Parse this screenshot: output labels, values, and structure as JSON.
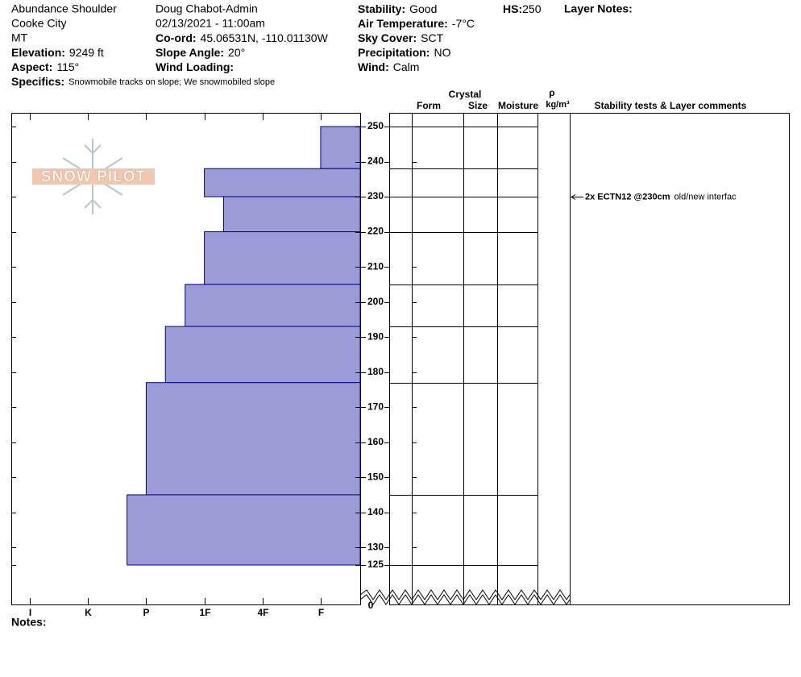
{
  "header": {
    "location": [
      "Abundance Shoulder",
      "Cooke City",
      "MT"
    ],
    "observer": "Doug Chabot-Admin",
    "datetime": "02/13/2021 - 11:00am",
    "fields_left": [
      {
        "label": "Elevation:",
        "value": "9249 ft"
      },
      {
        "label": "Aspect:",
        "value": "115°"
      }
    ],
    "fields_mid": [
      {
        "label": "Co-ord:",
        "value": "45.06531N, -110.01130W"
      },
      {
        "label": "Slope Angle:",
        "value": "20°"
      },
      {
        "label": "Wind Loading:",
        "value": ""
      }
    ],
    "fields_right": [
      {
        "label": "Stability:",
        "value": "Good"
      },
      {
        "label": "Air Temperature:",
        "value": "-7°C"
      },
      {
        "label": "Sky Cover:",
        "value": "SCT"
      },
      {
        "label": "Precipitation:",
        "value": "NO"
      },
      {
        "label": "Wind:",
        "value": "Calm"
      }
    ],
    "hs_label": "HS:",
    "hs_value": 250,
    "layer_notes": "Layer Notes:",
    "specifics": {
      "label": "Specifics:",
      "value": "Snowmobile tracks on slope; We snowmobiled slope"
    },
    "notes": "Notes:"
  },
  "logo": "SNOW PILOT",
  "columns": {
    "crystal": "Crystal",
    "form": "Form",
    "size": "Size",
    "moisture": "Moisture",
    "rho": "ρ",
    "density": "kg/m³",
    "comments": "Stability tests & Layer comments"
  },
  "chart_data": {
    "type": "snow-profile",
    "boundaries": [
      250,
      238,
      230,
      220,
      205,
      193,
      177,
      145,
      125
    ],
    "hardness": [
      1,
      3,
      2.67,
      3,
      3.33,
      3.67,
      4,
      4.33
    ],
    "color": "#9b9bd8",
    "edge_color": "#00008b",
    "ylim": [
      125,
      250
    ],
    "yticks": [
      125,
      130,
      140,
      150,
      160,
      170,
      180,
      190,
      200,
      210,
      220,
      230,
      240,
      250
    ],
    "ybase": 0,
    "xlim": [
      6.32,
      0.32
    ],
    "xticks": [
      {
        "value": 6,
        "label": "I"
      },
      {
        "value": 5,
        "label": "K"
      },
      {
        "value": 4,
        "label": "P"
      },
      {
        "value": 3,
        "label": "1F"
      },
      {
        "value": 2,
        "label": "4F"
      },
      {
        "value": 1,
        "label": "F"
      }
    ],
    "tests": [
      {
        "depth": 230,
        "test": "2x ECTN12 @230cm",
        "comment": "old/new interfac"
      }
    ]
  }
}
